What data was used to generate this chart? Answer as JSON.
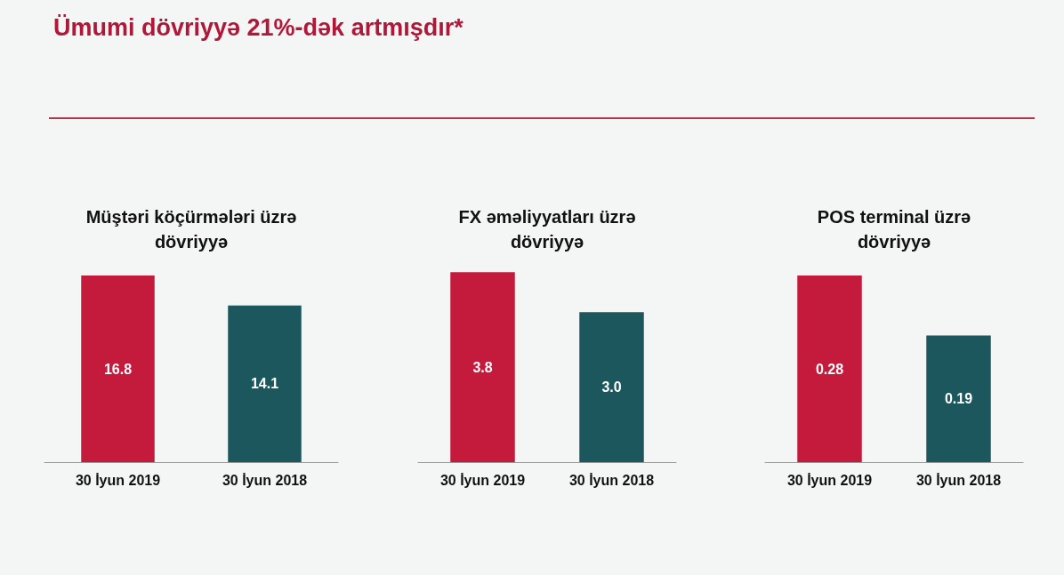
{
  "chart_data": [
    {
      "type": "other",
      "title": "Ümumi dövriyyə 21%-dək artmışdır*"
    },
    {
      "type": "bar",
      "title": "Müştəri köçürmələri üzrə\ndövriyyə",
      "categories": [
        "30 İyun 2019",
        "30 İyun 2018"
      ],
      "values": [
        16.8,
        14.1
      ],
      "colors": [
        "#c41a3b",
        "#1b575c"
      ],
      "value_labels": [
        "16.8",
        "14.1"
      ]
    },
    {
      "type": "bar",
      "title": "FX əməliyyatları üzrə\ndövriyyə",
      "categories": [
        "30 İyun 2019",
        "30 İyun 2018"
      ],
      "values": [
        3.8,
        3.0
      ],
      "colors": [
        "#c41a3b",
        "#1b575c"
      ],
      "value_labels": [
        "3.8",
        "3.0"
      ]
    },
    {
      "type": "bar",
      "title": "POS terminal üzrə\ndövriyyə",
      "categories": [
        "30 İyun 2019",
        "30 İyun 2018"
      ],
      "values": [
        0.28,
        0.19
      ],
      "colors": [
        "#c41a3b",
        "#1b575c"
      ],
      "value_labels": [
        "0.28",
        "0.19"
      ]
    }
  ]
}
